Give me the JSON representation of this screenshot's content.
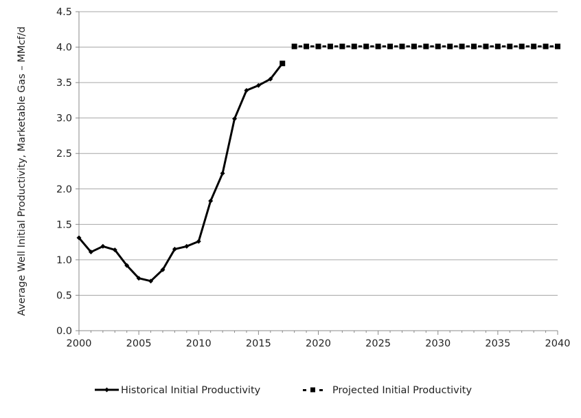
{
  "chart_data": {
    "type": "line",
    "title": "",
    "xlabel": "",
    "ylabel": "Average Well Initial Productivity, Marketable Gas – MMcf/d",
    "xlim": [
      2000,
      2040
    ],
    "ylim": [
      0,
      4.5
    ],
    "xticks": [
      "2000",
      "2005",
      "2010",
      "2015",
      "2020",
      "2025",
      "2030",
      "2035",
      "2040"
    ],
    "yticks": [
      "0.0",
      "0.5",
      "1.0",
      "1.5",
      "2.0",
      "2.5",
      "3.0",
      "3.5",
      "4.0",
      "4.5"
    ],
    "grid": "horizontal",
    "legend_position": "bottom",
    "series": [
      {
        "name": "Historical Initial Productivity",
        "color": "#000000",
        "style": "solid line with diamond markers",
        "x": [
          2000,
          2001,
          2002,
          2003,
          2004,
          2005,
          2006,
          2007,
          2008,
          2009,
          2010,
          2011,
          2012,
          2013,
          2014,
          2015,
          2016,
          2017
        ],
        "values": [
          1.31,
          1.11,
          1.19,
          1.14,
          0.92,
          0.74,
          0.7,
          0.86,
          1.15,
          1.19,
          1.26,
          1.83,
          2.22,
          2.99,
          3.39,
          3.46,
          3.55,
          3.77
        ]
      },
      {
        "name": "Projected Initial Productivity",
        "color": "#000000",
        "style": "square markers, dashed",
        "x": [
          2018,
          2019,
          2020,
          2021,
          2022,
          2023,
          2024,
          2025,
          2026,
          2027,
          2028,
          2029,
          2030,
          2031,
          2032,
          2033,
          2034,
          2035,
          2036,
          2037,
          2038,
          2039,
          2040
        ],
        "values": [
          4.01,
          4.01,
          4.01,
          4.01,
          4.01,
          4.01,
          4.01,
          4.01,
          4.01,
          4.01,
          4.01,
          4.01,
          4.01,
          4.01,
          4.01,
          4.01,
          4.01,
          4.01,
          4.01,
          4.01,
          4.01,
          4.01,
          4.01
        ]
      }
    ]
  }
}
